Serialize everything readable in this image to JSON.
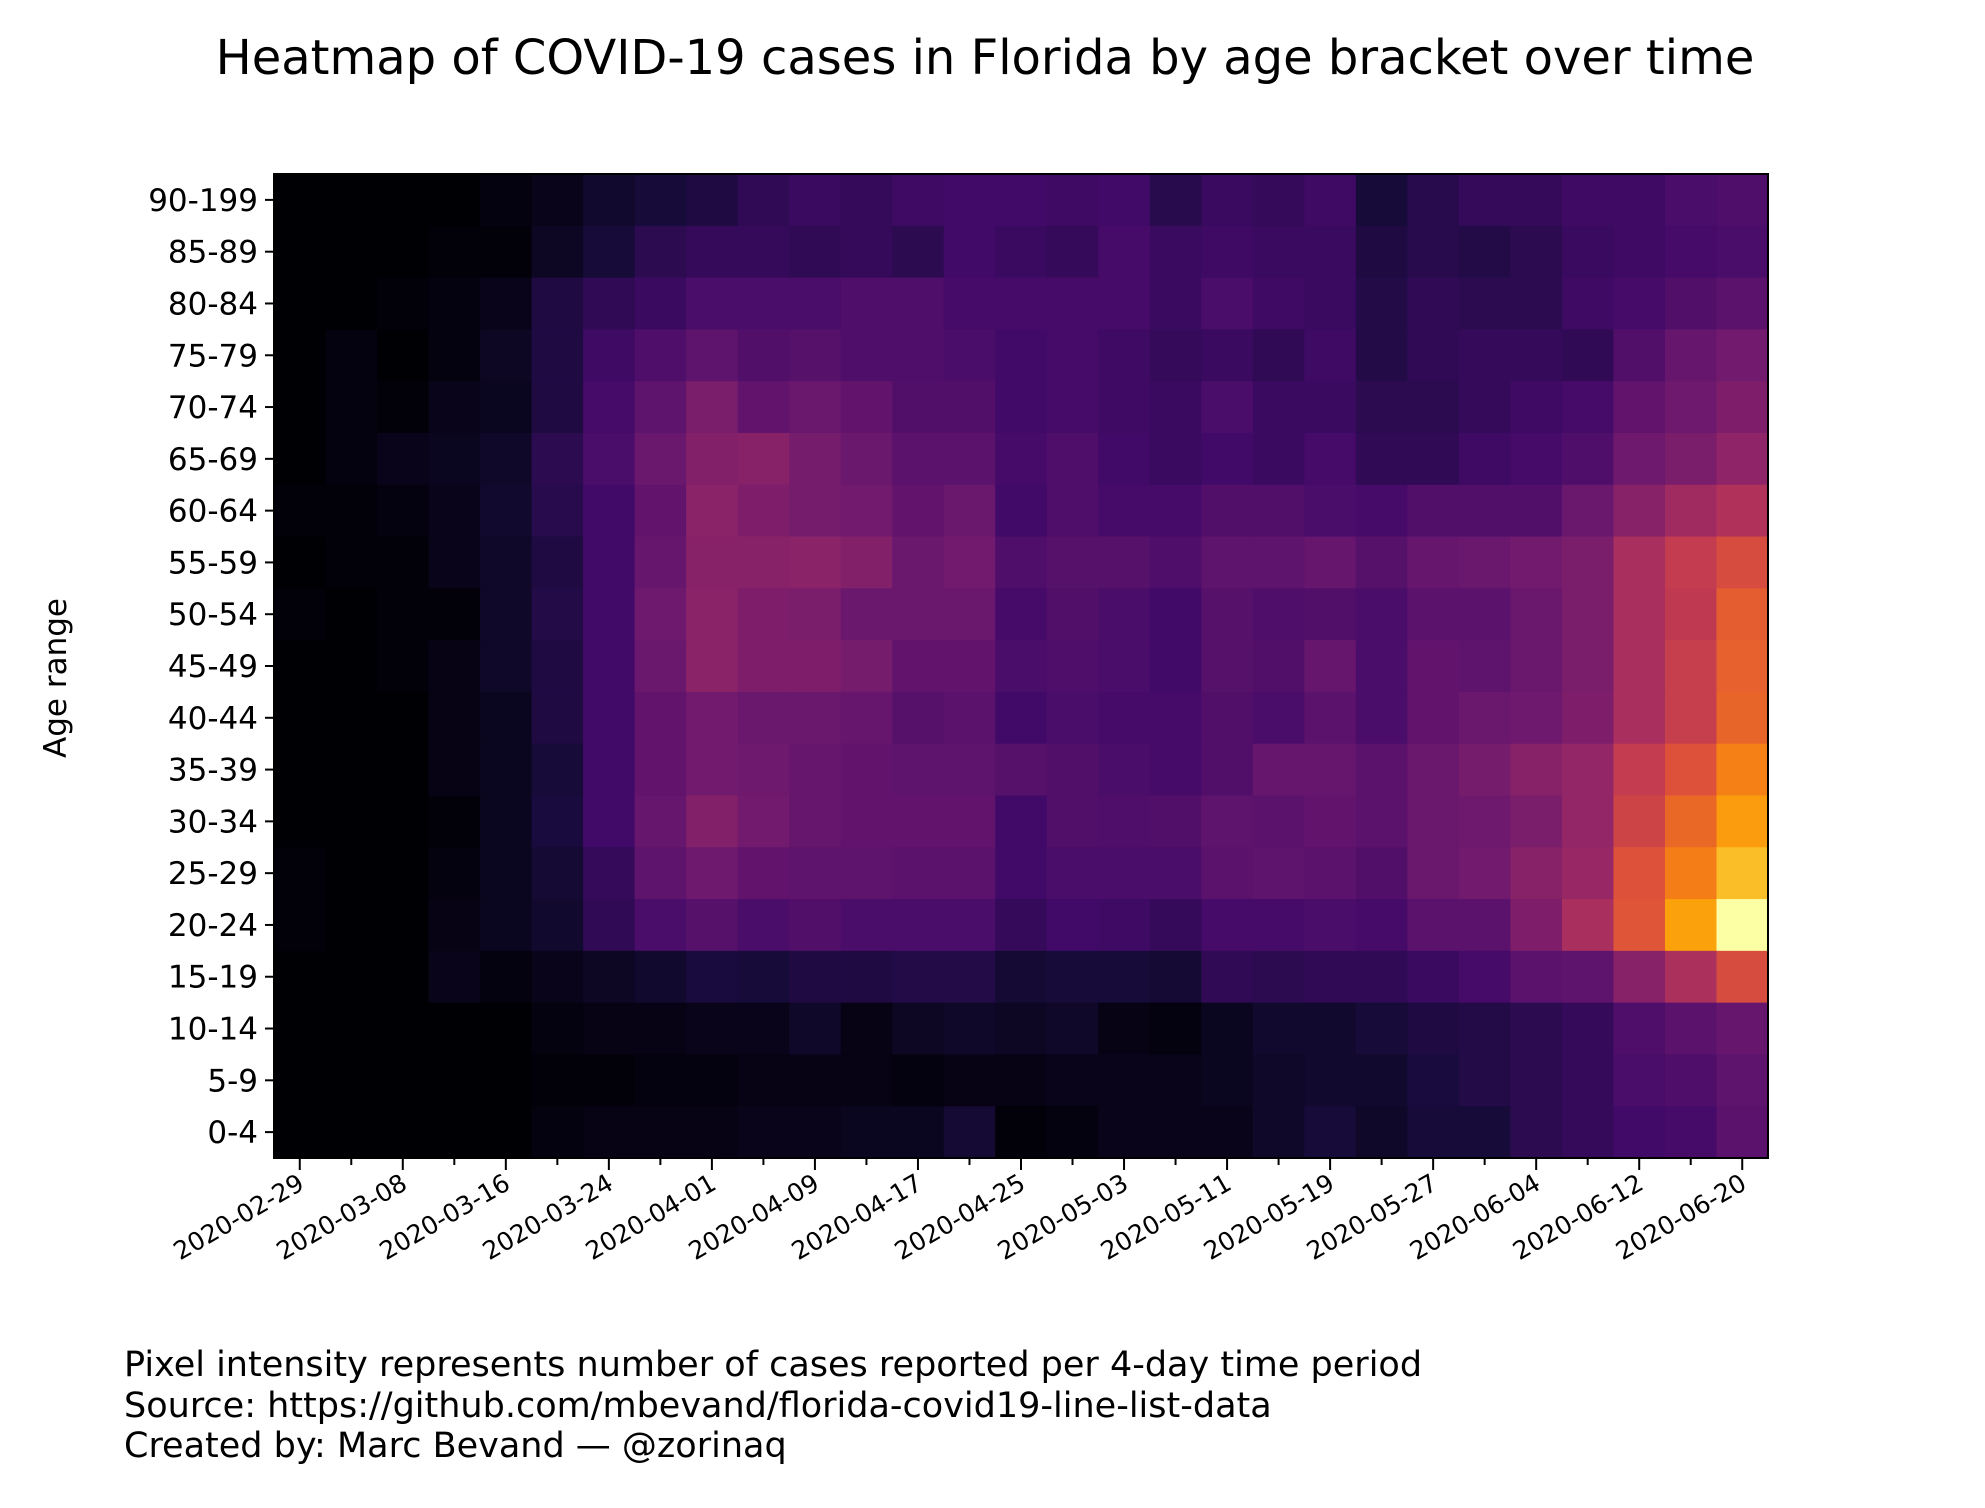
{
  "chart_data": {
    "type": "heatmap",
    "title": "Heatmap of COVID-19 cases in Florida by age bracket over time",
    "xlabel": "",
    "ylabel": "Age range",
    "x_ticks": [
      "2020-02-29",
      "2020-03-08",
      "2020-03-16",
      "2020-03-24",
      "2020-04-01",
      "2020-04-09",
      "2020-04-17",
      "2020-04-25",
      "2020-05-03",
      "2020-05-11",
      "2020-05-19",
      "2020-05-27",
      "2020-06-04",
      "2020-06-12",
      "2020-06-20"
    ],
    "x_periods": [
      "2020-02-29",
      "2020-03-04",
      "2020-03-08",
      "2020-03-12",
      "2020-03-16",
      "2020-03-20",
      "2020-03-24",
      "2020-03-28",
      "2020-04-01",
      "2020-04-05",
      "2020-04-09",
      "2020-04-13",
      "2020-04-17",
      "2020-04-21",
      "2020-04-25",
      "2020-04-29",
      "2020-05-03",
      "2020-05-07",
      "2020-05-11",
      "2020-05-15",
      "2020-05-19",
      "2020-05-23",
      "2020-05-27",
      "2020-05-31",
      "2020-06-04",
      "2020-06-08",
      "2020-06-12",
      "2020-06-16",
      "2020-06-20"
    ],
    "y_categories": [
      "90-199",
      "85-89",
      "80-84",
      "75-79",
      "70-74",
      "65-69",
      "60-64",
      "55-59",
      "50-54",
      "45-49",
      "40-44",
      "35-39",
      "30-34",
      "25-29",
      "20-24",
      "15-19",
      "10-14",
      "5-9",
      "0-4"
    ],
    "colormap": "inferno",
    "value_range": [
      0,
      1
    ],
    "value_note": "normalized intensity (relative number of cases per 4-day period)",
    "values": [
      [
        0,
        0,
        0,
        0,
        0.02,
        0.04,
        0.08,
        0.1,
        0.12,
        0.16,
        0.18,
        0.17,
        0.19,
        0.2,
        0.2,
        0.19,
        0.2,
        0.14,
        0.18,
        0.17,
        0.19,
        0.1,
        0.14,
        0.17,
        0.17,
        0.19,
        0.19,
        0.22,
        0.23
      ],
      [
        0,
        0,
        0,
        0.01,
        0.01,
        0.06,
        0.1,
        0.15,
        0.17,
        0.17,
        0.16,
        0.17,
        0.15,
        0.2,
        0.18,
        0.17,
        0.21,
        0.18,
        0.19,
        0.18,
        0.18,
        0.12,
        0.14,
        0.13,
        0.15,
        0.18,
        0.19,
        0.21,
        0.22
      ],
      [
        0,
        0,
        0.01,
        0.02,
        0.04,
        0.12,
        0.16,
        0.18,
        0.22,
        0.22,
        0.22,
        0.23,
        0.23,
        0.21,
        0.21,
        0.21,
        0.21,
        0.18,
        0.22,
        0.19,
        0.18,
        0.13,
        0.16,
        0.15,
        0.15,
        0.19,
        0.21,
        0.24,
        0.26
      ],
      [
        0,
        0.02,
        0,
        0.02,
        0.06,
        0.12,
        0.19,
        0.23,
        0.27,
        0.24,
        0.25,
        0.23,
        0.23,
        0.22,
        0.2,
        0.21,
        0.19,
        0.17,
        0.18,
        0.16,
        0.19,
        0.13,
        0.16,
        0.17,
        0.17,
        0.16,
        0.24,
        0.29,
        0.32
      ],
      [
        0,
        0.02,
        0.01,
        0.04,
        0.05,
        0.12,
        0.21,
        0.27,
        0.34,
        0.28,
        0.3,
        0.28,
        0.24,
        0.24,
        0.2,
        0.21,
        0.19,
        0.18,
        0.22,
        0.18,
        0.18,
        0.15,
        0.15,
        0.17,
        0.19,
        0.21,
        0.28,
        0.31,
        0.35
      ],
      [
        0,
        0.02,
        0.04,
        0.05,
        0.07,
        0.15,
        0.22,
        0.3,
        0.36,
        0.37,
        0.33,
        0.3,
        0.26,
        0.26,
        0.21,
        0.23,
        0.2,
        0.18,
        0.2,
        0.18,
        0.21,
        0.16,
        0.16,
        0.19,
        0.21,
        0.23,
        0.31,
        0.34,
        0.39
      ],
      [
        0.01,
        0.01,
        0.02,
        0.04,
        0.08,
        0.14,
        0.2,
        0.28,
        0.38,
        0.35,
        0.33,
        0.32,
        0.28,
        0.3,
        0.2,
        0.23,
        0.21,
        0.21,
        0.24,
        0.24,
        0.22,
        0.21,
        0.24,
        0.24,
        0.24,
        0.3,
        0.37,
        0.43,
        0.47
      ],
      [
        0,
        0.01,
        0.01,
        0.04,
        0.07,
        0.12,
        0.2,
        0.29,
        0.37,
        0.37,
        0.38,
        0.36,
        0.3,
        0.32,
        0.23,
        0.25,
        0.25,
        0.23,
        0.27,
        0.27,
        0.29,
        0.25,
        0.29,
        0.3,
        0.32,
        0.34,
        0.45,
        0.52,
        0.58
      ],
      [
        0.01,
        0,
        0.01,
        0.01,
        0.07,
        0.13,
        0.2,
        0.31,
        0.38,
        0.35,
        0.34,
        0.3,
        0.3,
        0.3,
        0.21,
        0.24,
        0.22,
        0.2,
        0.25,
        0.23,
        0.24,
        0.22,
        0.26,
        0.26,
        0.3,
        0.34,
        0.45,
        0.51,
        0.63
      ],
      [
        0,
        0,
        0.01,
        0.03,
        0.07,
        0.12,
        0.2,
        0.3,
        0.38,
        0.35,
        0.35,
        0.33,
        0.28,
        0.28,
        0.22,
        0.23,
        0.22,
        0.2,
        0.25,
        0.24,
        0.29,
        0.22,
        0.28,
        0.27,
        0.3,
        0.34,
        0.45,
        0.53,
        0.64
      ],
      [
        0,
        0,
        0,
        0.03,
        0.05,
        0.12,
        0.2,
        0.28,
        0.32,
        0.3,
        0.3,
        0.29,
        0.25,
        0.26,
        0.2,
        0.22,
        0.21,
        0.21,
        0.24,
        0.22,
        0.26,
        0.22,
        0.28,
        0.3,
        0.31,
        0.35,
        0.45,
        0.53,
        0.65
      ],
      [
        0,
        0,
        0,
        0.03,
        0.05,
        0.1,
        0.2,
        0.28,
        0.32,
        0.31,
        0.29,
        0.28,
        0.27,
        0.27,
        0.25,
        0.24,
        0.22,
        0.21,
        0.24,
        0.29,
        0.29,
        0.26,
        0.3,
        0.33,
        0.37,
        0.4,
        0.52,
        0.6,
        0.72
      ],
      [
        0,
        0,
        0,
        0.01,
        0.05,
        0.11,
        0.2,
        0.29,
        0.36,
        0.32,
        0.29,
        0.28,
        0.28,
        0.28,
        0.2,
        0.24,
        0.23,
        0.24,
        0.27,
        0.26,
        0.28,
        0.26,
        0.3,
        0.31,
        0.34,
        0.4,
        0.55,
        0.66,
        0.78
      ],
      [
        0.01,
        0,
        0,
        0.02,
        0.05,
        0.09,
        0.17,
        0.27,
        0.31,
        0.28,
        0.27,
        0.27,
        0.26,
        0.26,
        0.2,
        0.22,
        0.22,
        0.22,
        0.26,
        0.27,
        0.26,
        0.24,
        0.3,
        0.32,
        0.37,
        0.41,
        0.6,
        0.71,
        0.85
      ],
      [
        0.01,
        0,
        0,
        0.03,
        0.05,
        0.08,
        0.16,
        0.22,
        0.25,
        0.22,
        0.24,
        0.22,
        0.22,
        0.22,
        0.17,
        0.2,
        0.19,
        0.17,
        0.21,
        0.21,
        0.22,
        0.21,
        0.26,
        0.26,
        0.35,
        0.45,
        0.61,
        0.79,
        1.0
      ],
      [
        0,
        0,
        0,
        0.04,
        0.02,
        0.04,
        0.06,
        0.08,
        0.11,
        0.1,
        0.12,
        0.12,
        0.13,
        0.13,
        0.09,
        0.1,
        0.1,
        0.09,
        0.16,
        0.15,
        0.16,
        0.16,
        0.18,
        0.21,
        0.26,
        0.27,
        0.37,
        0.46,
        0.58
      ],
      [
        0,
        0,
        0,
        0,
        0,
        0.02,
        0.03,
        0.03,
        0.04,
        0.04,
        0.07,
        0.03,
        0.06,
        0.07,
        0.06,
        0.07,
        0.03,
        0.02,
        0.05,
        0.08,
        0.08,
        0.1,
        0.12,
        0.13,
        0.15,
        0.17,
        0.23,
        0.26,
        0.29
      ],
      [
        0,
        0,
        0,
        0,
        0,
        0.01,
        0.01,
        0.02,
        0.02,
        0.03,
        0.03,
        0.03,
        0.02,
        0.03,
        0.03,
        0.04,
        0.04,
        0.04,
        0.05,
        0.07,
        0.08,
        0.08,
        0.11,
        0.13,
        0.15,
        0.17,
        0.22,
        0.23,
        0.27
      ],
      [
        0,
        0,
        0,
        0,
        0,
        0.02,
        0.03,
        0.03,
        0.03,
        0.04,
        0.04,
        0.05,
        0.05,
        0.09,
        0.01,
        0.02,
        0.04,
        0.04,
        0.04,
        0.07,
        0.1,
        0.07,
        0.1,
        0.1,
        0.15,
        0.17,
        0.2,
        0.21,
        0.26
      ]
    ]
  },
  "footer": {
    "line1": "Pixel intensity represents number of cases reported per 4-day time period",
    "line2": "Source: https://github.com/mbevand/florida-covid19-line-list-data",
    "line3": "Created by: Marc Bevand — @zorinaq"
  }
}
